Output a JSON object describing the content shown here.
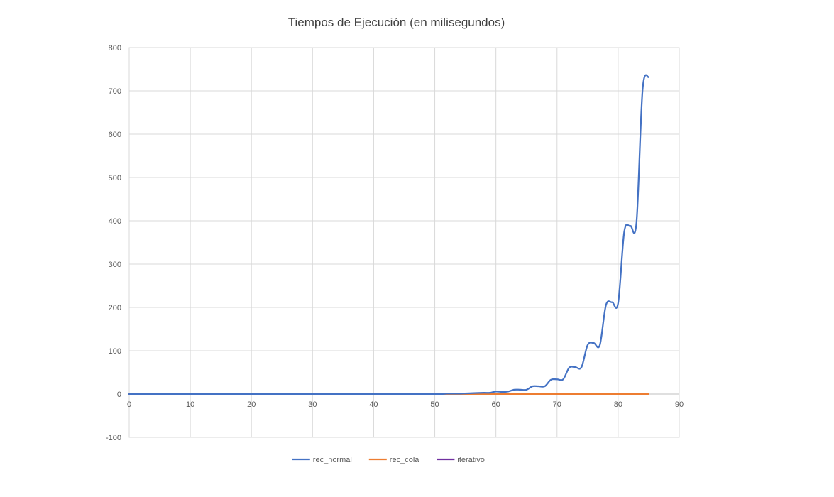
{
  "chart_data": {
    "type": "line",
    "title": "Tiempos de Ejecución (en milisegundos)",
    "xlabel": "",
    "ylabel": "",
    "xlim": [
      0,
      90
    ],
    "ylim": [
      -100,
      800
    ],
    "xticks": [
      0,
      10,
      20,
      30,
      40,
      50,
      60,
      70,
      80,
      90
    ],
    "yticks": [
      -100,
      0,
      100,
      200,
      300,
      400,
      500,
      600,
      700,
      800
    ],
    "grid": true,
    "legend_position": "bottom",
    "series": [
      {
        "name": "rec_normal",
        "color": "#4472C4",
        "points": [
          [
            0,
            0
          ],
          [
            10,
            0
          ],
          [
            20,
            0
          ],
          [
            30,
            0
          ],
          [
            40,
            0
          ],
          [
            50,
            0
          ],
          [
            52,
            1
          ],
          [
            54,
            1
          ],
          [
            56,
            2
          ],
          [
            58,
            3
          ],
          [
            59,
            3
          ],
          [
            60,
            6
          ],
          [
            61,
            5
          ],
          [
            62,
            6
          ],
          [
            63,
            10
          ],
          [
            64,
            10
          ],
          [
            65,
            10
          ],
          [
            66,
            18
          ],
          [
            67,
            18
          ],
          [
            68,
            18
          ],
          [
            69,
            33
          ],
          [
            70,
            34
          ],
          [
            71,
            34
          ],
          [
            72,
            61
          ],
          [
            73,
            62
          ],
          [
            74,
            62
          ],
          [
            75,
            113
          ],
          [
            76,
            118
          ],
          [
            77,
            113
          ],
          [
            78,
            205
          ],
          [
            79,
            212
          ],
          [
            80,
            210
          ],
          [
            81,
            375
          ],
          [
            82,
            388
          ],
          [
            83,
            396
          ],
          [
            84,
            703
          ],
          [
            85,
            732
          ]
        ]
      },
      {
        "name": "rec_cola",
        "color": "#ED7D31",
        "points": [
          [
            0,
            0
          ],
          [
            20,
            0
          ],
          [
            36,
            0
          ],
          [
            37,
            1
          ],
          [
            38,
            0
          ],
          [
            45,
            0
          ],
          [
            46,
            1
          ],
          [
            47,
            0
          ],
          [
            49,
            1
          ],
          [
            50,
            0
          ],
          [
            58,
            0
          ],
          [
            59,
            1
          ],
          [
            60,
            0
          ],
          [
            85,
            0
          ]
        ]
      },
      {
        "name": "iterativo",
        "color": "#7030A0",
        "points": [
          [
            0,
            0
          ],
          [
            85,
            0
          ]
        ]
      }
    ]
  }
}
